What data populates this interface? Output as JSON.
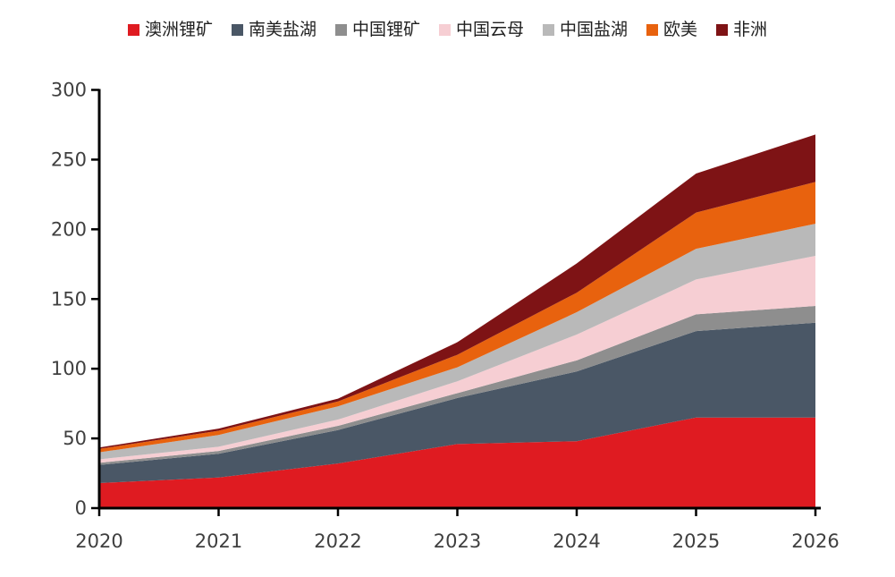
{
  "chart_data": {
    "type": "area",
    "stacked": true,
    "title": "",
    "xlabel": "",
    "ylabel": "",
    "x": [
      "2020",
      "2021",
      "2022",
      "2023",
      "2024",
      "2025",
      "2026"
    ],
    "series": [
      {
        "name": "澳洲锂矿",
        "color": "#df1b21",
        "values": [
          18,
          22,
          32,
          46,
          48,
          65,
          65
        ]
      },
      {
        "name": "南美盐湖",
        "color": "#4a5766",
        "values": [
          13,
          17,
          24,
          33,
          50,
          62,
          68
        ]
      },
      {
        "name": "中国锂矿",
        "color": "#8e8e8e",
        "values": [
          1.5,
          2,
          3,
          3.5,
          8,
          12,
          12
        ]
      },
      {
        "name": "中国云母",
        "color": "#f6ced3",
        "values": [
          2.5,
          3,
          4.5,
          8.5,
          18.5,
          25,
          36
        ]
      },
      {
        "name": "中国盐湖",
        "color": "#b9b9b9",
        "values": [
          5,
          8.5,
          9.5,
          10,
          16,
          22,
          23
        ]
      },
      {
        "name": "欧美",
        "color": "#e8620e",
        "values": [
          2.5,
          3,
          3.5,
          9,
          14,
          26,
          30
        ]
      },
      {
        "name": "非洲",
        "color": "#7e1315",
        "values": [
          1,
          1.5,
          2,
          9,
          21,
          28,
          34
        ]
      }
    ],
    "ylim": [
      0,
      300
    ],
    "yticks": [
      "0",
      "50",
      "100",
      "150",
      "200",
      "250",
      "300"
    ],
    "ytick_values": [
      0,
      50,
      100,
      150,
      200,
      250,
      300
    ],
    "grid": false,
    "legend_position": "top",
    "axis_color": "#000000",
    "tick_label_color": "#3f3f3f"
  }
}
